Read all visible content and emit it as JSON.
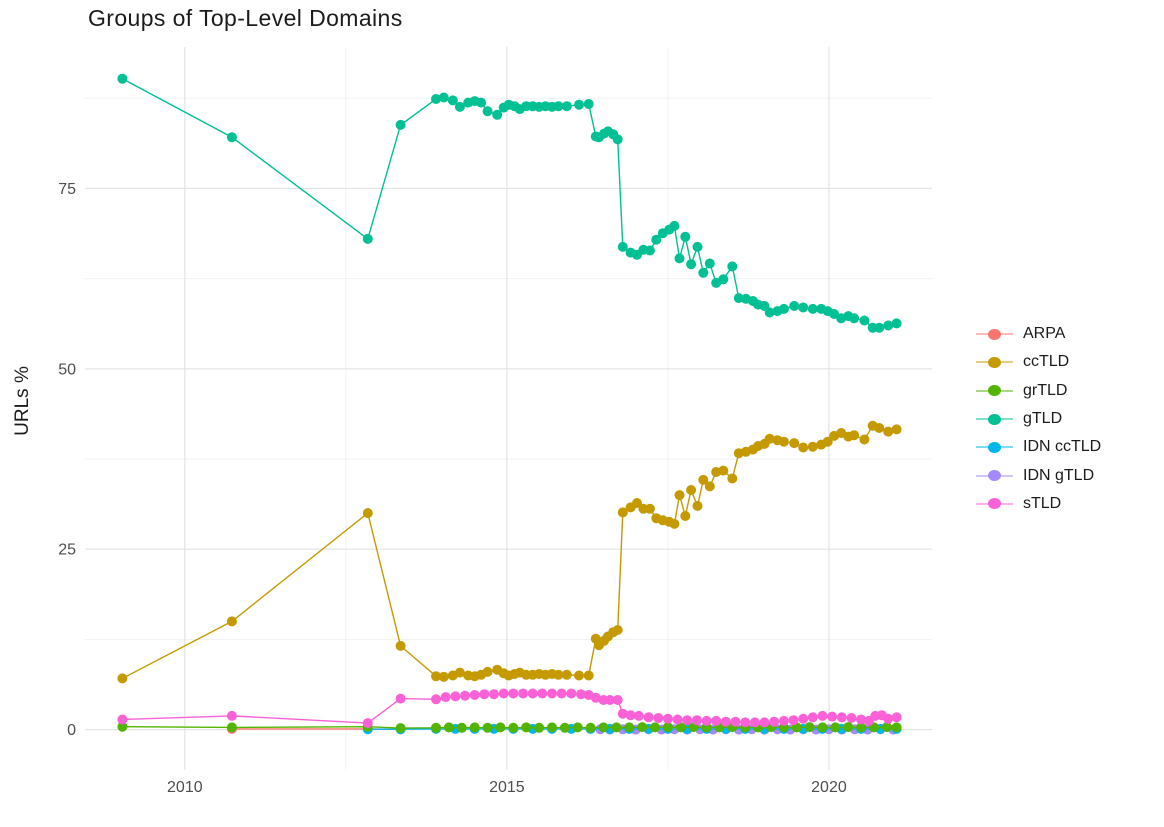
{
  "chart_data": {
    "type": "line",
    "title": "Groups of Top-Level Domains",
    "xlabel": "",
    "ylabel": "URLs %",
    "x_ticks": [
      2010,
      2015,
      2020
    ],
    "x_minor_ticks": [
      2012.5,
      2017.5
    ],
    "y_ticks": [
      0,
      25,
      50,
      75
    ],
    "y_minor_ticks": [
      12.5,
      37.5,
      62.5,
      87.5
    ],
    "xlim": [
      2008.45,
      2021.6
    ],
    "ylim": [
      -5.6,
      94.6
    ],
    "grid": "on",
    "legend_position": "right",
    "series": [
      {
        "name": "ARPA",
        "color": "#F8766D",
        "z": 1,
        "points": [
          [
            2010.73,
            0.1
          ],
          [
            2012.84,
            0.1
          ],
          [
            2013.35,
            0.05
          ]
        ]
      },
      {
        "name": "ccTLD",
        "color": "#C49A00",
        "z": 4,
        "points": [
          [
            2009.03,
            7.1
          ],
          [
            2010.73,
            15.0
          ],
          [
            2012.84,
            30.0
          ],
          [
            2013.35,
            11.6
          ],
          [
            2013.9,
            7.4
          ],
          [
            2014.02,
            7.3
          ],
          [
            2014.16,
            7.5
          ],
          [
            2014.27,
            7.9
          ],
          [
            2014.4,
            7.5
          ],
          [
            2014.5,
            7.4
          ],
          [
            2014.6,
            7.6
          ],
          [
            2014.7,
            8.0
          ],
          [
            2014.85,
            8.3
          ],
          [
            2014.95,
            7.8
          ],
          [
            2015.03,
            7.5
          ],
          [
            2015.12,
            7.7
          ],
          [
            2015.2,
            7.9
          ],
          [
            2015.3,
            7.6
          ],
          [
            2015.4,
            7.6
          ],
          [
            2015.5,
            7.7
          ],
          [
            2015.6,
            7.6
          ],
          [
            2015.7,
            7.7
          ],
          [
            2015.8,
            7.6
          ],
          [
            2015.93,
            7.6
          ],
          [
            2016.12,
            7.5
          ],
          [
            2016.27,
            7.5
          ],
          [
            2016.38,
            12.6
          ],
          [
            2016.43,
            11.7
          ],
          [
            2016.51,
            12.3
          ],
          [
            2016.57,
            12.9
          ],
          [
            2016.65,
            13.5
          ],
          [
            2016.72,
            13.8
          ],
          [
            2016.8,
            30.1
          ],
          [
            2016.92,
            30.8
          ],
          [
            2017.02,
            31.4
          ],
          [
            2017.12,
            30.6
          ],
          [
            2017.22,
            30.6
          ],
          [
            2017.32,
            29.3
          ],
          [
            2017.42,
            29.0
          ],
          [
            2017.52,
            28.8
          ],
          [
            2017.6,
            28.5
          ],
          [
            2017.68,
            32.5
          ],
          [
            2017.77,
            29.6
          ],
          [
            2017.86,
            33.2
          ],
          [
            2017.96,
            31.0
          ],
          [
            2018.05,
            34.6
          ],
          [
            2018.15,
            33.7
          ],
          [
            2018.25,
            35.7
          ],
          [
            2018.36,
            35.9
          ],
          [
            2018.5,
            34.8
          ],
          [
            2018.6,
            38.3
          ],
          [
            2018.71,
            38.5
          ],
          [
            2018.82,
            38.8
          ],
          [
            2018.9,
            39.3
          ],
          [
            2019.0,
            39.6
          ],
          [
            2019.08,
            40.3
          ],
          [
            2019.2,
            40.1
          ],
          [
            2019.3,
            39.9
          ],
          [
            2019.46,
            39.7
          ],
          [
            2019.6,
            39.1
          ],
          [
            2019.75,
            39.2
          ],
          [
            2019.88,
            39.5
          ],
          [
            2019.98,
            39.9
          ],
          [
            2020.08,
            40.7
          ],
          [
            2020.19,
            41.1
          ],
          [
            2020.3,
            40.6
          ],
          [
            2020.39,
            40.8
          ],
          [
            2020.55,
            40.2
          ],
          [
            2020.68,
            42.1
          ],
          [
            2020.78,
            41.8
          ],
          [
            2020.92,
            41.3
          ],
          [
            2021.05,
            41.6
          ]
        ]
      },
      {
        "name": "grTLD",
        "color": "#53B400",
        "z": 6,
        "points": [
          [
            2009.03,
            0.4
          ],
          [
            2010.73,
            0.3
          ],
          [
            2012.84,
            0.4
          ],
          [
            2013.35,
            0.2
          ],
          [
            2013.9,
            0.25
          ],
          [
            2014.1,
            0.3
          ],
          [
            2014.3,
            0.25
          ],
          [
            2014.5,
            0.3
          ],
          [
            2014.7,
            0.25
          ],
          [
            2014.9,
            0.3
          ],
          [
            2015.1,
            0.25
          ],
          [
            2015.3,
            0.3
          ],
          [
            2015.5,
            0.25
          ],
          [
            2015.7,
            0.3
          ],
          [
            2015.9,
            0.25
          ],
          [
            2016.1,
            0.3
          ],
          [
            2016.3,
            0.25
          ],
          [
            2016.5,
            0.3
          ],
          [
            2016.7,
            0.3
          ],
          [
            2016.9,
            0.3
          ],
          [
            2017.1,
            0.35
          ],
          [
            2017.3,
            0.3
          ],
          [
            2017.5,
            0.35
          ],
          [
            2017.7,
            0.3
          ],
          [
            2017.9,
            0.35
          ],
          [
            2018.1,
            0.3
          ],
          [
            2018.3,
            0.3
          ],
          [
            2018.5,
            0.35
          ],
          [
            2018.7,
            0.3
          ],
          [
            2018.9,
            0.3
          ],
          [
            2019.1,
            0.35
          ],
          [
            2019.3,
            0.3
          ],
          [
            2019.5,
            0.3
          ],
          [
            2019.7,
            0.35
          ],
          [
            2019.9,
            0.3
          ],
          [
            2020.1,
            0.3
          ],
          [
            2020.3,
            0.35
          ],
          [
            2020.5,
            0.3
          ],
          [
            2020.7,
            0.3
          ],
          [
            2020.9,
            0.35
          ],
          [
            2021.05,
            0.3
          ]
        ]
      },
      {
        "name": "gTLD",
        "color": "#00C094",
        "z": 5,
        "points": [
          [
            2009.03,
            90.2
          ],
          [
            2010.73,
            82.1
          ],
          [
            2012.84,
            68.0
          ],
          [
            2013.35,
            83.8
          ],
          [
            2013.9,
            87.4
          ],
          [
            2014.02,
            87.6
          ],
          [
            2014.16,
            87.2
          ],
          [
            2014.27,
            86.3
          ],
          [
            2014.4,
            86.9
          ],
          [
            2014.5,
            87.1
          ],
          [
            2014.6,
            86.9
          ],
          [
            2014.7,
            85.7
          ],
          [
            2014.85,
            85.2
          ],
          [
            2014.95,
            86.2
          ],
          [
            2015.03,
            86.6
          ],
          [
            2015.12,
            86.4
          ],
          [
            2015.2,
            86.0
          ],
          [
            2015.3,
            86.4
          ],
          [
            2015.4,
            86.4
          ],
          [
            2015.5,
            86.3
          ],
          [
            2015.6,
            86.4
          ],
          [
            2015.7,
            86.3
          ],
          [
            2015.8,
            86.4
          ],
          [
            2015.93,
            86.4
          ],
          [
            2016.12,
            86.6
          ],
          [
            2016.27,
            86.7
          ],
          [
            2016.38,
            82.2
          ],
          [
            2016.43,
            82.1
          ],
          [
            2016.51,
            82.6
          ],
          [
            2016.57,
            82.9
          ],
          [
            2016.65,
            82.5
          ],
          [
            2016.72,
            81.8
          ],
          [
            2016.8,
            66.9
          ],
          [
            2016.92,
            66.1
          ],
          [
            2017.02,
            65.8
          ],
          [
            2017.12,
            66.5
          ],
          [
            2017.22,
            66.4
          ],
          [
            2017.32,
            67.9
          ],
          [
            2017.42,
            68.8
          ],
          [
            2017.52,
            69.3
          ],
          [
            2017.6,
            69.8
          ],
          [
            2017.68,
            65.3
          ],
          [
            2017.77,
            68.3
          ],
          [
            2017.86,
            64.5
          ],
          [
            2017.96,
            66.9
          ],
          [
            2018.05,
            63.3
          ],
          [
            2018.15,
            64.6
          ],
          [
            2018.25,
            61.9
          ],
          [
            2018.36,
            62.4
          ],
          [
            2018.5,
            64.2
          ],
          [
            2018.6,
            59.8
          ],
          [
            2018.71,
            59.7
          ],
          [
            2018.82,
            59.4
          ],
          [
            2018.9,
            58.9
          ],
          [
            2019.0,
            58.7
          ],
          [
            2019.08,
            57.8
          ],
          [
            2019.2,
            58.0
          ],
          [
            2019.3,
            58.3
          ],
          [
            2019.46,
            58.7
          ],
          [
            2019.6,
            58.5
          ],
          [
            2019.75,
            58.3
          ],
          [
            2019.88,
            58.3
          ],
          [
            2019.98,
            58.0
          ],
          [
            2020.08,
            57.6
          ],
          [
            2020.19,
            57.0
          ],
          [
            2020.3,
            57.3
          ],
          [
            2020.39,
            57.0
          ],
          [
            2020.55,
            56.7
          ],
          [
            2020.68,
            55.7
          ],
          [
            2020.78,
            55.7
          ],
          [
            2020.92,
            56.0
          ],
          [
            2021.05,
            56.3
          ]
        ]
      },
      {
        "name": "IDN ccTLD",
        "color": "#00B6EB",
        "z": 3,
        "points": [
          [
            2012.84,
            0.05
          ],
          [
            2013.35,
            0.05
          ],
          [
            2013.9,
            0.1
          ],
          [
            2014.2,
            0.1
          ],
          [
            2014.5,
            0.1
          ],
          [
            2014.8,
            0.1
          ],
          [
            2015.1,
            0.1
          ],
          [
            2015.4,
            0.1
          ],
          [
            2015.7,
            0.1
          ],
          [
            2016.0,
            0.1
          ],
          [
            2016.3,
            0.1
          ],
          [
            2016.6,
            0.1
          ],
          [
            2016.9,
            0.1
          ],
          [
            2017.2,
            0.1
          ],
          [
            2017.5,
            0.1
          ],
          [
            2017.8,
            0.1
          ],
          [
            2018.1,
            0.1
          ],
          [
            2018.4,
            0.1
          ],
          [
            2018.7,
            0.1
          ],
          [
            2019.0,
            0.1
          ],
          [
            2019.3,
            0.1
          ],
          [
            2019.6,
            0.1
          ],
          [
            2019.9,
            0.1
          ],
          [
            2020.2,
            0.1
          ],
          [
            2020.5,
            0.1
          ],
          [
            2020.8,
            0.1
          ],
          [
            2021.05,
            0.1
          ]
        ]
      },
      {
        "name": "IDN gTLD",
        "color": "#A58AFF",
        "z": 2,
        "points": [
          [
            2016.45,
            0.05
          ],
          [
            2016.6,
            0.0
          ],
          [
            2016.8,
            0.05
          ],
          [
            2017.0,
            0.0
          ],
          [
            2017.2,
            0.05
          ],
          [
            2017.4,
            0.0
          ],
          [
            2017.6,
            0.05
          ],
          [
            2017.8,
            0.0
          ],
          [
            2018.0,
            0.05
          ],
          [
            2018.2,
            0.0
          ],
          [
            2018.4,
            0.05
          ],
          [
            2018.6,
            0.0
          ],
          [
            2018.8,
            0.05
          ],
          [
            2019.0,
            0.0
          ],
          [
            2019.2,
            0.05
          ],
          [
            2019.4,
            0.0
          ],
          [
            2019.6,
            0.05
          ],
          [
            2019.8,
            0.0
          ],
          [
            2020.0,
            0.05
          ],
          [
            2020.2,
            0.0
          ],
          [
            2020.4,
            0.05
          ],
          [
            2020.6,
            0.0
          ],
          [
            2020.8,
            0.05
          ],
          [
            2021.0,
            0.0
          ]
        ]
      },
      {
        "name": "sTLD",
        "color": "#FB61D7",
        "z": 7,
        "points": [
          [
            2009.03,
            1.4
          ],
          [
            2010.73,
            1.9
          ],
          [
            2012.84,
            0.9
          ],
          [
            2013.35,
            4.3
          ],
          [
            2013.9,
            4.2
          ],
          [
            2014.05,
            4.5
          ],
          [
            2014.2,
            4.6
          ],
          [
            2014.35,
            4.7
          ],
          [
            2014.5,
            4.8
          ],
          [
            2014.65,
            4.9
          ],
          [
            2014.8,
            4.9
          ],
          [
            2014.95,
            5.0
          ],
          [
            2015.1,
            5.0
          ],
          [
            2015.25,
            5.0
          ],
          [
            2015.4,
            5.0
          ],
          [
            2015.55,
            5.0
          ],
          [
            2015.7,
            5.0
          ],
          [
            2015.85,
            5.0
          ],
          [
            2016.0,
            5.0
          ],
          [
            2016.15,
            4.9
          ],
          [
            2016.27,
            4.8
          ],
          [
            2016.38,
            4.4
          ],
          [
            2016.5,
            4.1
          ],
          [
            2016.6,
            4.1
          ],
          [
            2016.72,
            4.1
          ],
          [
            2016.8,
            2.2
          ],
          [
            2016.92,
            2.0
          ],
          [
            2017.05,
            1.9
          ],
          [
            2017.2,
            1.7
          ],
          [
            2017.35,
            1.6
          ],
          [
            2017.5,
            1.5
          ],
          [
            2017.65,
            1.4
          ],
          [
            2017.8,
            1.3
          ],
          [
            2017.95,
            1.3
          ],
          [
            2018.1,
            1.2
          ],
          [
            2018.25,
            1.2
          ],
          [
            2018.4,
            1.1
          ],
          [
            2018.55,
            1.1
          ],
          [
            2018.7,
            1.0
          ],
          [
            2018.85,
            1.0
          ],
          [
            2019.0,
            1.0
          ],
          [
            2019.15,
            1.1
          ],
          [
            2019.3,
            1.2
          ],
          [
            2019.45,
            1.3
          ],
          [
            2019.6,
            1.5
          ],
          [
            2019.75,
            1.7
          ],
          [
            2019.9,
            1.9
          ],
          [
            2020.05,
            1.8
          ],
          [
            2020.2,
            1.7
          ],
          [
            2020.35,
            1.6
          ],
          [
            2020.5,
            1.4
          ],
          [
            2020.62,
            1.2
          ],
          [
            2020.72,
            1.9
          ],
          [
            2020.82,
            2.0
          ],
          [
            2020.92,
            1.5
          ],
          [
            2021.05,
            1.7
          ]
        ]
      }
    ]
  }
}
